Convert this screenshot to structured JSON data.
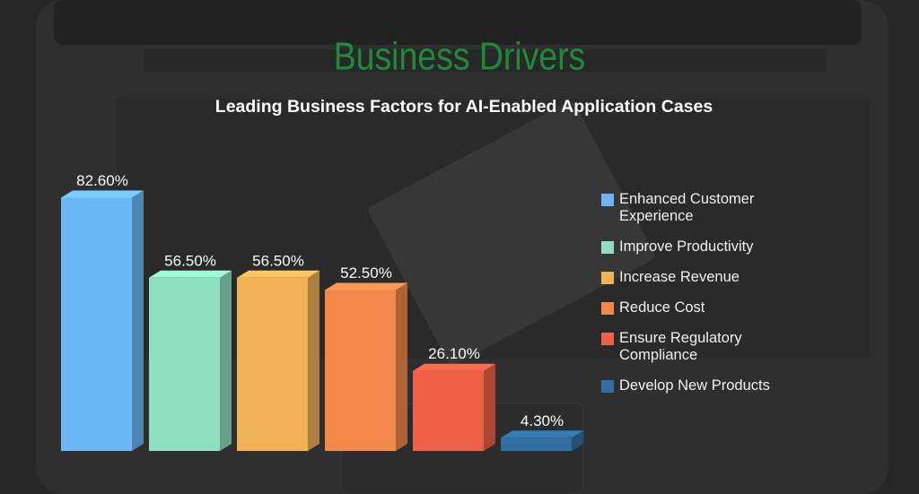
{
  "chart_data": {
    "type": "bar",
    "title": "Business Drivers",
    "subtitle": "Leading Business Factors for AI-Enabled Application Cases",
    "categories": [
      "Enhanced Customer Experience",
      "Improve Productivity",
      "Increase Revenue",
      "Reduce Cost",
      "Ensure Regulatory Compliance",
      "Develop New Products"
    ],
    "values": [
      82.6,
      56.5,
      56.5,
      52.5,
      26.1,
      4.3
    ],
    "value_labels": [
      "82.60%",
      "56.50%",
      "56.50%",
      "52.50%",
      "26.10%",
      "4.30%"
    ],
    "colors": [
      "#6cb8f6",
      "#8fe0c2",
      "#f0b157",
      "#f2884a",
      "#ef6146",
      "#2f6fa4"
    ],
    "legend": "right"
  }
}
